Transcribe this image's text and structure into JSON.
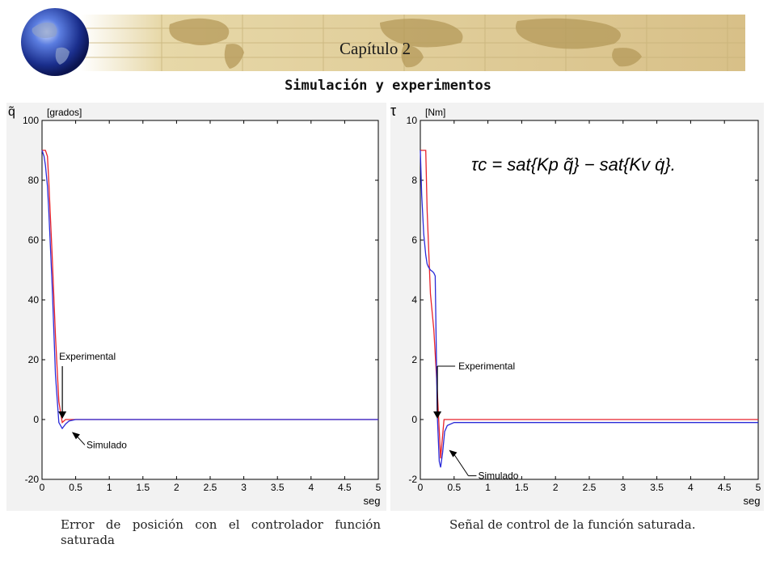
{
  "header": {
    "chapter": "Capítulo 2",
    "title": "Simulación y experimentos"
  },
  "colors": {
    "experimental": "#e8222a",
    "simulado": "#2a2ad8",
    "banner": "#d9c48e",
    "panel_bg": "#f2f2f2"
  },
  "chart_data": [
    {
      "type": "line",
      "y_symbol": "q̃",
      "ylabel": "[grados]",
      "xlabel": "seg",
      "xlim": [
        0,
        5
      ],
      "ylim": [
        -20,
        100
      ],
      "xticks": [
        "0",
        "0.5",
        "1",
        "1.5",
        "2",
        "2.5",
        "3",
        "3.5",
        "4",
        "4.5",
        "5"
      ],
      "yticks": [
        "-20",
        "0",
        "20",
        "40",
        "60",
        "80",
        "100"
      ],
      "series": [
        {
          "name": "Experimental",
          "color": "#e8222a",
          "x": [
            0,
            0.05,
            0.08,
            0.1,
            0.15,
            0.2,
            0.25,
            0.3,
            0.35,
            0.4,
            0.5,
            1,
            5
          ],
          "y": [
            90,
            90,
            88,
            80,
            55,
            28,
            6,
            -1,
            0,
            0,
            0,
            0,
            0
          ]
        },
        {
          "name": "Simulado",
          "color": "#2a2ad8",
          "x": [
            0,
            0.03,
            0.05,
            0.08,
            0.1,
            0.15,
            0.2,
            0.25,
            0.3,
            0.35,
            0.4,
            0.5,
            0.6,
            1,
            5
          ],
          "y": [
            90,
            88,
            85,
            78,
            70,
            45,
            15,
            -1,
            -3,
            -1.5,
            -0.5,
            0,
            0,
            0,
            0
          ]
        }
      ],
      "annotations": [
        {
          "text": "Experimental",
          "x": 0.35,
          "y": 0
        },
        {
          "text": "Simulado",
          "x": 0.42,
          "y": -2
        }
      ],
      "caption": "Error de posición con el controlador función saturada"
    },
    {
      "type": "line",
      "y_symbol": "τ",
      "ylabel": "[Nm]",
      "xlabel": "seg",
      "xlim": [
        0,
        5
      ],
      "ylim": [
        -2,
        10
      ],
      "xticks": [
        "0",
        "0.5",
        "1",
        "1.5",
        "2",
        "2.5",
        "3",
        "3.5",
        "4",
        "4.5",
        "5"
      ],
      "yticks": [
        "-2",
        "0",
        "2",
        "4",
        "6",
        "8",
        "10"
      ],
      "formula": "τc = sat{Kp q̃} − sat{Kv q̇}.",
      "series": [
        {
          "name": "Experimental",
          "color": "#e8222a",
          "x": [
            0,
            0.02,
            0.08,
            0.1,
            0.15,
            0.2,
            0.25,
            0.3,
            0.35,
            0.4,
            0.6,
            1,
            5
          ],
          "y": [
            9,
            9,
            9,
            7,
            4.2,
            3,
            1,
            -1.3,
            0,
            0,
            0,
            0,
            0
          ]
        },
        {
          "name": "Simulado",
          "color": "#2a2ad8",
          "x": [
            0,
            0.02,
            0.05,
            0.08,
            0.1,
            0.12,
            0.15,
            0.18,
            0.2,
            0.22,
            0.25,
            0.28,
            0.3,
            0.33,
            0.36,
            0.4,
            0.5,
            0.7,
            1,
            5
          ],
          "y": [
            9,
            7.5,
            6.2,
            5.5,
            5.2,
            5.1,
            5,
            4.95,
            4.9,
            4.8,
            0.2,
            -1.4,
            -1.6,
            -1.1,
            -0.4,
            -0.2,
            -0.1,
            -0.1,
            -0.1,
            -0.1
          ]
        }
      ],
      "annotations": [
        {
          "text": "Experimental",
          "x": 0.3,
          "y": 0
        },
        {
          "text": "Simulado",
          "x": 0.4,
          "y": -0.8
        }
      ],
      "caption": "Señal de control de la función saturada."
    }
  ]
}
